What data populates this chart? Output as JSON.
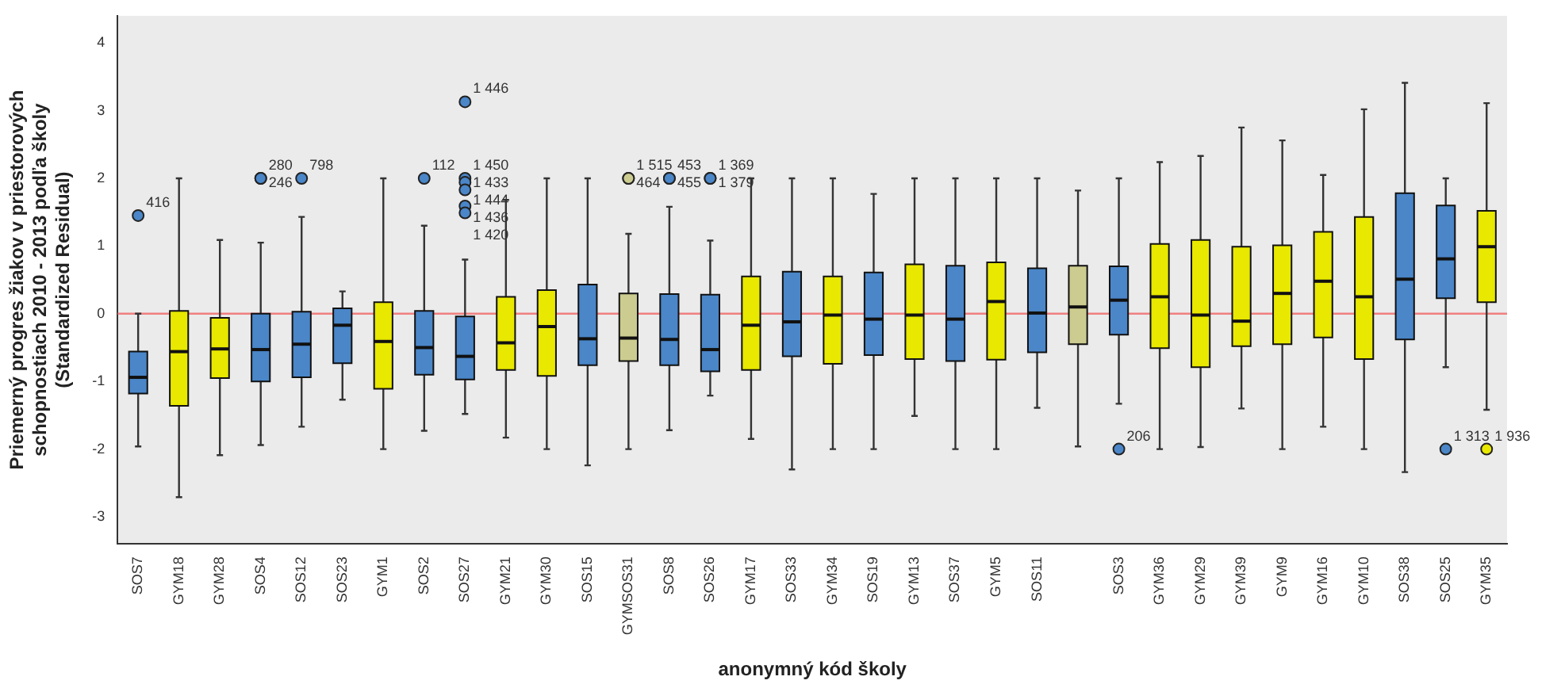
{
  "chart_data": {
    "type": "box",
    "xlabel": "anonymný kód školy",
    "ylabel": "Priemerný progres žiakov v priestorových schopnostiach 2010 - 2013 podľa školy (Standardized Residual)",
    "categories": [
      "SOS7",
      "GYM18",
      "GYM28",
      "SOS4",
      "SOS12",
      "SOS23",
      "GYM1",
      "SOS2",
      "SOS27",
      "GYM21",
      "GYM30",
      "SOS15",
      "GYMSOS31",
      "SOS8",
      "SOS26",
      "GYM17",
      "SOS33",
      "GYM34",
      "SOS19",
      "GYM13",
      "SOS37",
      "GYM5",
      "SOS11",
      null,
      "SOS3",
      "GYM36",
      "GYM29",
      "GYM39",
      "GYM9",
      "GYM16",
      "GYM10",
      "SOS38",
      "SOS25",
      "GYM35"
    ],
    "colors": [
      "#4a86c8",
      "#e8e800",
      "#e8e800",
      "#4a86c8",
      "#4a86c8",
      "#4a86c8",
      "#e8e800",
      "#4a86c8",
      "#4a86c8",
      "#e8e800",
      "#e8e800",
      "#4a86c8",
      "#cccc90",
      "#4a86c8",
      "#4a86c8",
      "#e8e800",
      "#4a86c8",
      "#e8e800",
      "#4a86c8",
      "#e8e800",
      "#4a86c8",
      "#e8e800",
      "#4a86c8",
      "#cccc90",
      "#4a86c8",
      "#e8e800",
      "#e8e800",
      "#e8e800",
      "#e8e800",
      "#e8e800",
      "#e8e800",
      "#4a86c8",
      "#4a86c8",
      "#e8e800"
    ],
    "boxes": [
      {
        "low": -1.96,
        "q1": -1.18,
        "median": -0.94,
        "q3": -0.56,
        "high": 0,
        "outliers": [
          1.45
        ]
      },
      {
        "low": -2.71,
        "q1": -1.36,
        "median": -0.56,
        "q3": 0.04,
        "high": 2.0
      },
      {
        "low": -2.09,
        "q1": -0.95,
        "median": -0.52,
        "q3": -0.06,
        "high": 1.09
      },
      {
        "low": -1.94,
        "q1": -1.0,
        "median": -0.53,
        "q3": 0.0,
        "high": 1.05,
        "outliers": [
          2.0,
          2.0
        ]
      },
      {
        "low": -1.67,
        "q1": -0.94,
        "median": -0.45,
        "q3": 0.03,
        "high": 1.43,
        "outliers": [
          2.0
        ]
      },
      {
        "low": -1.27,
        "q1": -0.73,
        "median": -0.17,
        "q3": 0.08,
        "high": 0.33
      },
      {
        "low": -2.0,
        "q1": -1.11,
        "median": -0.41,
        "q3": 0.17,
        "high": 2.0
      },
      {
        "low": -1.73,
        "q1": -0.9,
        "median": -0.5,
        "q3": 0.04,
        "high": 1.3,
        "outliers": [
          2.0
        ]
      },
      {
        "low": -1.48,
        "q1": -0.97,
        "median": -0.63,
        "q3": -0.04,
        "high": 0.8,
        "outliers": [
          3.13,
          2.0,
          1.94,
          1.83,
          1.59,
          1.49
        ]
      },
      {
        "low": -1.83,
        "q1": -0.83,
        "median": -0.43,
        "q3": 0.25,
        "high": 1.68
      },
      {
        "low": -2.0,
        "q1": -0.92,
        "median": -0.19,
        "q3": 0.35,
        "high": 2.0
      },
      {
        "low": -2.24,
        "q1": -0.76,
        "median": -0.37,
        "q3": 0.43,
        "high": 2.0
      },
      {
        "low": -2.0,
        "q1": -0.7,
        "median": -0.36,
        "q3": 0.3,
        "high": 1.18,
        "outliers": [
          2.0,
          2.0
        ]
      },
      {
        "low": -1.72,
        "q1": -0.76,
        "median": -0.38,
        "q3": 0.29,
        "high": 1.58,
        "outliers": [
          2.0,
          2.0
        ]
      },
      {
        "low": -1.21,
        "q1": -0.85,
        "median": -0.53,
        "q3": 0.28,
        "high": 1.08,
        "outliers": [
          2.0,
          2.0
        ]
      },
      {
        "low": -1.85,
        "q1": -0.83,
        "median": -0.17,
        "q3": 0.55,
        "high": 2.0
      },
      {
        "low": -2.3,
        "q1": -0.63,
        "median": -0.12,
        "q3": 0.62,
        "high": 2.0
      },
      {
        "low": -2.0,
        "q1": -0.74,
        "median": -0.02,
        "q3": 0.55,
        "high": 2.0
      },
      {
        "low": -2.0,
        "q1": -0.61,
        "median": -0.08,
        "q3": 0.61,
        "high": 1.77
      },
      {
        "low": -1.51,
        "q1": -0.67,
        "median": -0.02,
        "q3": 0.73,
        "high": 2.0
      },
      {
        "low": -2.0,
        "q1": -0.7,
        "median": -0.08,
        "q3": 0.71,
        "high": 2.0
      },
      {
        "low": -2.0,
        "q1": -0.68,
        "median": 0.18,
        "q3": 0.76,
        "high": 2.0
      },
      {
        "low": -1.39,
        "q1": -0.57,
        "median": 0.01,
        "q3": 0.67,
        "high": 2.0
      },
      {
        "low": -1.96,
        "q1": -0.45,
        "median": 0.1,
        "q3": 0.71,
        "high": 1.82
      },
      {
        "low": -1.33,
        "q1": -0.31,
        "median": 0.2,
        "q3": 0.7,
        "high": 2.0,
        "outliers": [
          -2.0
        ]
      },
      {
        "low": -2.0,
        "q1": -0.51,
        "median": 0.25,
        "q3": 1.03,
        "high": 2.24
      },
      {
        "low": -1.97,
        "q1": -0.79,
        "median": -0.02,
        "q3": 1.09,
        "high": 2.33
      },
      {
        "low": -1.4,
        "q1": -0.48,
        "median": -0.11,
        "q3": 0.99,
        "high": 2.75
      },
      {
        "low": -2.0,
        "q1": -0.45,
        "median": 0.3,
        "q3": 1.01,
        "high": 2.56
      },
      {
        "low": -1.67,
        "q1": -0.35,
        "median": 0.48,
        "q3": 1.21,
        "high": 2.05
      },
      {
        "low": -2.0,
        "q1": -0.67,
        "median": 0.25,
        "q3": 1.43,
        "high": 3.02
      },
      {
        "low": -2.34,
        "q1": -0.38,
        "median": 0.51,
        "q3": 1.78,
        "high": 3.41
      },
      {
        "low": -0.79,
        "q1": 0.23,
        "median": 0.81,
        "q3": 1.6,
        "high": 2.0,
        "outliers": [
          -2.0
        ]
      },
      {
        "low": -1.42,
        "q1": 0.17,
        "median": 0.99,
        "q3": 1.52,
        "high": 3.11,
        "outliers": [
          -2.0
        ]
      }
    ],
    "ylim": [
      -3.4,
      4.4
    ],
    "yticks": [
      -3,
      -2,
      -1,
      0,
      1,
      2,
      3,
      4
    ],
    "ref_lines": [
      {
        "axis": "y",
        "value": 0,
        "color": "#f08080"
      }
    ],
    "annotations": [
      "416",
      "280",
      "246",
      "798",
      "112",
      "1 446",
      "1 450",
      "1 433",
      "1 444",
      "1 436",
      "1 420",
      "1 515",
      "464",
      "453",
      "455",
      "1 369",
      "1 379",
      "206",
      "1 313",
      "1 936"
    ]
  }
}
